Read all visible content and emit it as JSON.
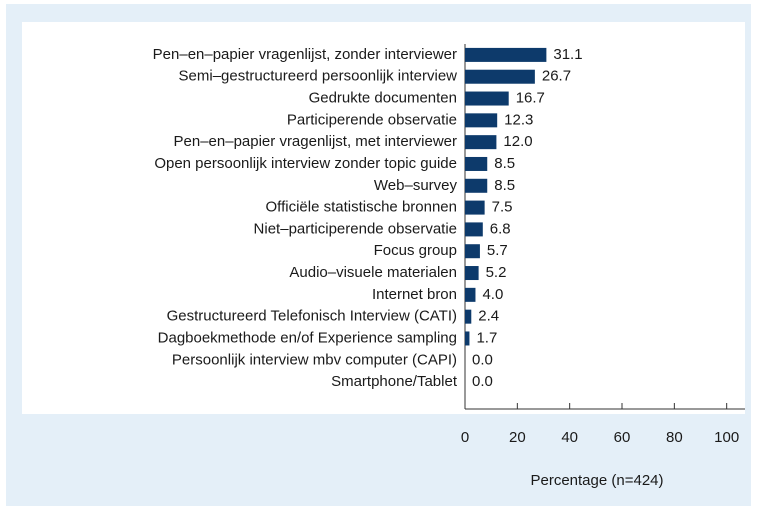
{
  "chart_data": {
    "type": "bar",
    "orientation": "horizontal",
    "categories": [
      "Pen–en–papier vragenlijst, zonder interviewer",
      "Semi–gestructureerd persoonlijk interview",
      "Gedrukte documenten",
      "Participerende observatie",
      "Pen–en–papier vragenlijst, met interviewer",
      "Open persoonlijk interview zonder topic guide",
      "Web–survey",
      "Officiële statistische bronnen",
      "Niet–participerende observatie",
      "Focus group",
      "Audio–visuele materialen",
      "Internet bron",
      "Gestructureerd Telefonisch Interview (CATI)",
      "Dagboekmethode en/of Experience sampling",
      "Persoonlijk interview mbv computer (CAPI)",
      "Smartphone/Tablet"
    ],
    "values": [
      31.1,
      26.7,
      16.7,
      12.3,
      12.0,
      8.5,
      8.5,
      7.5,
      6.8,
      5.7,
      5.2,
      4.0,
      2.4,
      1.7,
      0.0,
      0.0
    ],
    "value_labels": [
      "31.1",
      "26.7",
      "16.7",
      "12.3",
      "12.0",
      "8.5",
      "8.5",
      "7.5",
      "6.8",
      "5.7",
      "5.2",
      "4.0",
      "2.4",
      "1.7",
      "0.0",
      "0.0"
    ],
    "color": "#0d3a6b",
    "xlabel": "Percentage (n=424)",
    "xlim": [
      0,
      107
    ],
    "xticks": [
      0,
      20,
      40,
      60,
      80,
      100
    ]
  }
}
